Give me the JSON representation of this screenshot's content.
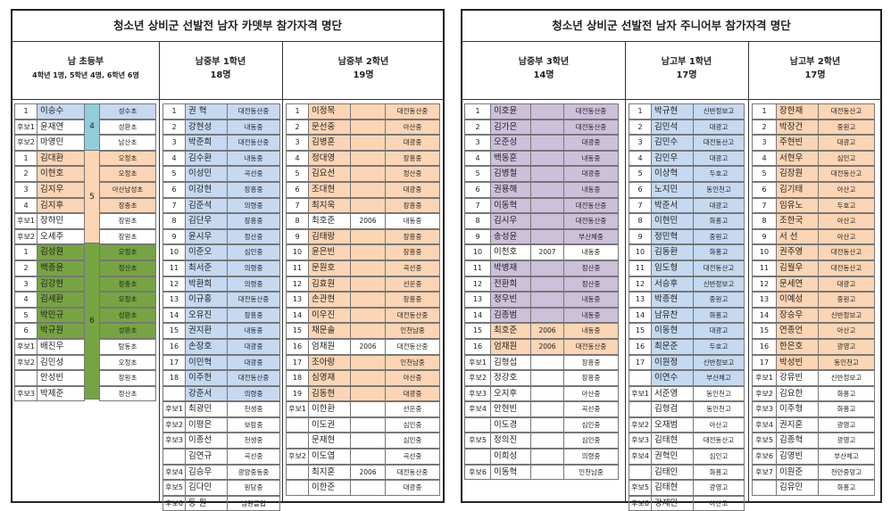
{
  "left": {
    "title": "청소년 상비군 선발전 남자 카뎃부 참가자격 명단",
    "headers": [
      {
        "name": "남 초등부",
        "count": "4학년 1명, 5학년 4명, 6학년 6명"
      },
      {
        "name": "남중부  1학년",
        "count": "18명"
      },
      {
        "name": "남중부  2학년",
        "count": "19명"
      }
    ],
    "elementary": [
      {
        "n": "1",
        "name": "이승수",
        "group": "4",
        "school": "성수초",
        "color": "blue"
      },
      {
        "n": "후보1",
        "name": "윤재연",
        "group": "4",
        "school": "성환초",
        "color": ""
      },
      {
        "n": "후보2",
        "name": "마영민",
        "group": "4",
        "school": "남산초",
        "color": ""
      },
      {
        "n": "1",
        "name": "김대환",
        "group": "5",
        "school": "오정초",
        "color": "orange"
      },
      {
        "n": "2",
        "name": "이현호",
        "group": "5",
        "school": "오정초",
        "color": "orange"
      },
      {
        "n": "3",
        "name": "김지우",
        "group": "5",
        "school": "아산남성초",
        "color": "orange"
      },
      {
        "n": "4",
        "name": "김지후",
        "group": "5",
        "school": "장충초",
        "color": "orange"
      },
      {
        "n": "후보1",
        "name": "장하민",
        "group": "5",
        "school": "장원초",
        "color": ""
      },
      {
        "n": "후보2",
        "name": "오세주",
        "group": "5",
        "school": "장원초",
        "color": ""
      },
      {
        "n": "1",
        "name": "김성원",
        "group": "6",
        "school": "오정초",
        "color": "green"
      },
      {
        "n": "2",
        "name": "백종윤",
        "group": "6",
        "school": "정산초",
        "color": "green"
      },
      {
        "n": "3",
        "name": "김강현",
        "group": "6",
        "school": "장충초",
        "color": "green"
      },
      {
        "n": "4",
        "name": "김세환",
        "group": "6",
        "school": "오정초",
        "color": "green"
      },
      {
        "n": "5",
        "name": "박민규",
        "group": "6",
        "school": "성환초",
        "color": "green"
      },
      {
        "n": "6",
        "name": "박규원",
        "group": "6",
        "school": "성환초",
        "color": "green"
      },
      {
        "n": "후보1",
        "name": "배진우",
        "group": "6",
        "school": "탐동초",
        "color": ""
      },
      {
        "n": "후보2",
        "name": "김민성",
        "group": "6",
        "school": "오정초",
        "color": ""
      },
      {
        "n": "",
        "name": "안성빈",
        "group": "6",
        "school": "장원초",
        "color": ""
      },
      {
        "n": "후보3",
        "name": "박제준",
        "group": "6",
        "school": "정산초",
        "color": ""
      }
    ],
    "m1": [
      {
        "n": "1",
        "name": "권  혁",
        "school": "대전동산중",
        "color": "blue"
      },
      {
        "n": "2",
        "name": "강현성",
        "school": "내동중",
        "color": "blue"
      },
      {
        "n": "3",
        "name": "박준희",
        "school": "대전동산중",
        "color": "blue"
      },
      {
        "n": "4",
        "name": "김수환",
        "school": "내동중",
        "color": "blue"
      },
      {
        "n": "5",
        "name": "이성민",
        "school": "곡선중",
        "color": "blue"
      },
      {
        "n": "6",
        "name": "이강현",
        "school": "장흥중",
        "color": "blue"
      },
      {
        "n": "7",
        "name": "김준석",
        "school": "의령중",
        "color": "blue"
      },
      {
        "n": "8",
        "name": "김단우",
        "school": "장흥중",
        "color": "blue"
      },
      {
        "n": "9",
        "name": "윤시우",
        "school": "정산중",
        "color": "blue"
      },
      {
        "n": "10",
        "name": "이준오",
        "school": "심인중",
        "color": "blue"
      },
      {
        "n": "11",
        "name": "최서준",
        "school": "의령중",
        "color": "blue"
      },
      {
        "n": "12",
        "name": "박환희",
        "school": "의령중",
        "color": "blue"
      },
      {
        "n": "13",
        "name": "이규홍",
        "school": "대전동산중",
        "color": "blue"
      },
      {
        "n": "14",
        "name": "오유진",
        "school": "장흥중",
        "color": "blue"
      },
      {
        "n": "15",
        "name": "권지환",
        "school": "내동중",
        "color": "blue"
      },
      {
        "n": "16",
        "name": "손장호",
        "school": "대광중",
        "color": "blue"
      },
      {
        "n": "17",
        "name": "이민혁",
        "school": "대광중",
        "color": "blue"
      },
      {
        "n": "18",
        "name": "이주헌",
        "school": "대전동산중",
        "color": "blue"
      },
      {
        "n": "",
        "name": "강준서",
        "school": "의령중",
        "color": "blue"
      },
      {
        "n": "후보1",
        "name": "최광민",
        "school": "천생중",
        "color": ""
      },
      {
        "n": "후보2",
        "name": "이평은",
        "school": "보람중",
        "color": ""
      },
      {
        "n": "후보3",
        "name": "이종선",
        "school": "천생중",
        "color": ""
      },
      {
        "n": "",
        "name": "김연규",
        "school": "곡선중",
        "color": ""
      },
      {
        "n": "후보4",
        "name": "김승우",
        "school": "광양중동중",
        "color": ""
      },
      {
        "n": "후보5",
        "name": "김다민",
        "school": "원당중",
        "color": ""
      },
      {
        "n": "후보6",
        "name": "동  원",
        "school": "남원클럽",
        "color": ""
      }
    ],
    "m2": [
      {
        "n": "1",
        "name": "이정목",
        "yr": "",
        "school": "대전동산중",
        "color": "orange"
      },
      {
        "n": "2",
        "name": "문선중",
        "yr": "",
        "school": "아산중",
        "color": "orange"
      },
      {
        "n": "3",
        "name": "김병훈",
        "yr": "",
        "school": "대광중",
        "color": "orange"
      },
      {
        "n": "4",
        "name": "정대영",
        "yr": "",
        "school": "장흥중",
        "color": "orange"
      },
      {
        "n": "5",
        "name": "김요선",
        "yr": "",
        "school": "정산중",
        "color": "orange"
      },
      {
        "n": "6",
        "name": "조대현",
        "yr": "",
        "school": "대광중",
        "color": "orange"
      },
      {
        "n": "7",
        "name": "최지욱",
        "yr": "",
        "school": "장흥중",
        "color": "orange"
      },
      {
        "n": "8",
        "name": "최호준",
        "yr": "2006",
        "school": "내동중",
        "color": ""
      },
      {
        "n": "9",
        "name": "김태랑",
        "yr": "",
        "school": "장흥중",
        "color": "orange"
      },
      {
        "n": "10",
        "name": "윤은빈",
        "yr": "",
        "school": "장흥중",
        "color": "orange"
      },
      {
        "n": "11",
        "name": "문원호",
        "yr": "",
        "school": "곡선중",
        "color": "orange"
      },
      {
        "n": "12",
        "name": "김효원",
        "yr": "",
        "school": "선운중",
        "color": "orange"
      },
      {
        "n": "13",
        "name": "손관현",
        "yr": "",
        "school": "장흥중",
        "color": "orange"
      },
      {
        "n": "14",
        "name": "이우진",
        "yr": "",
        "school": "대전동산중",
        "color": "orange"
      },
      {
        "n": "15",
        "name": "채문솔",
        "yr": "",
        "school": "인천남중",
        "color": "orange"
      },
      {
        "n": "16",
        "name": "엄채원",
        "yr": "2006",
        "school": "대전동산중",
        "color": ""
      },
      {
        "n": "17",
        "name": "조아랑",
        "yr": "",
        "school": "인천남중",
        "color": "orange"
      },
      {
        "n": "18",
        "name": "심영재",
        "yr": "",
        "school": "아산중",
        "color": "orange"
      },
      {
        "n": "19",
        "name": "김동현",
        "yr": "",
        "school": "대광중",
        "color": "orange"
      },
      {
        "n": "후보1",
        "name": "이한환",
        "yr": "",
        "school": "선운중",
        "color": ""
      },
      {
        "n": "",
        "name": "이도권",
        "yr": "",
        "school": "심인중",
        "color": ""
      },
      {
        "n": "",
        "name": "문재현",
        "yr": "",
        "school": "심인중",
        "color": ""
      },
      {
        "n": "후보2",
        "name": "이도엽",
        "yr": "",
        "school": "곡선중",
        "color": ""
      },
      {
        "n": "",
        "name": "최지훈",
        "yr": "2006",
        "school": "대전동산중",
        "color": ""
      },
      {
        "n": "",
        "name": "이한준",
        "yr": "",
        "school": "대광중",
        "color": ""
      }
    ]
  },
  "right": {
    "title": "청소년 상비군 선발전 남자 주니어부 참가자격 명단",
    "headers": [
      {
        "name": "남중부  3학년",
        "count": "14명"
      },
      {
        "name": "남고부 1학년",
        "count": "17명"
      },
      {
        "name": "남고부  2학년",
        "count": "17명"
      }
    ],
    "m3": [
      {
        "n": "1",
        "name": "이호윤",
        "yr": "",
        "school": "대전동산중",
        "color": "purple"
      },
      {
        "n": "2",
        "name": "김가은",
        "yr": "",
        "school": "대전동산중",
        "color": "purple"
      },
      {
        "n": "3",
        "name": "오준성",
        "yr": "",
        "school": "대광중",
        "color": "purple"
      },
      {
        "n": "4",
        "name": "백동훈",
        "yr": "",
        "school": "내동중",
        "color": "purple"
      },
      {
        "n": "5",
        "name": "김병철",
        "yr": "",
        "school": "대광중",
        "color": "purple"
      },
      {
        "n": "6",
        "name": "권용해",
        "yr": "",
        "school": "내동중",
        "color": "purple"
      },
      {
        "n": "7",
        "name": "이동혁",
        "yr": "",
        "school": "대전동산중",
        "color": "purple"
      },
      {
        "n": "8",
        "name": "김시우",
        "yr": "",
        "school": "대전동산중",
        "color": "purple"
      },
      {
        "n": "9",
        "name": "송성윤",
        "yr": "",
        "school": "부산체중",
        "color": "purple"
      },
      {
        "n": "10",
        "name": "이천호",
        "yr": "2007",
        "school": "내동중",
        "color": ""
      },
      {
        "n": "11",
        "name": "박병재",
        "yr": "",
        "school": "정산중",
        "color": "purple"
      },
      {
        "n": "12",
        "name": "전환희",
        "yr": "",
        "school": "정산중",
        "color": "purple"
      },
      {
        "n": "13",
        "name": "정우빈",
        "yr": "",
        "school": "내동중",
        "color": "purple"
      },
      {
        "n": "14",
        "name": "김종범",
        "yr": "",
        "school": "내동중",
        "color": "purple"
      },
      {
        "n": "15",
        "name": "최호준",
        "yr": "2006",
        "school": "내동중",
        "color": "orange"
      },
      {
        "n": "16",
        "name": "엄채원",
        "yr": "2006",
        "school": "대전동산중",
        "color": "orange"
      },
      {
        "n": "후보1",
        "name": "김형섭",
        "yr": "",
        "school": "장흥중",
        "color": ""
      },
      {
        "n": "후보2",
        "name": "정강호",
        "yr": "",
        "school": "장흥중",
        "color": ""
      },
      {
        "n": "후보3",
        "name": "오지후",
        "yr": "",
        "school": "아산중",
        "color": ""
      },
      {
        "n": "후보4",
        "name": "안현빈",
        "yr": "",
        "school": "곡선중",
        "color": ""
      },
      {
        "n": "",
        "name": "이도경",
        "yr": "",
        "school": "심인중",
        "color": ""
      },
      {
        "n": "후보5",
        "name": "정의진",
        "yr": "",
        "school": "심인중",
        "color": ""
      },
      {
        "n": "",
        "name": "이희성",
        "yr": "",
        "school": "의령중",
        "color": ""
      },
      {
        "n": "후보6",
        "name": "이동혁",
        "yr": "",
        "school": "인천남중",
        "color": ""
      }
    ],
    "h1": [
      {
        "n": "1",
        "name": "박규현",
        "school": "신반정보고",
        "color": "blue"
      },
      {
        "n": "2",
        "name": "김민석",
        "school": "대광고",
        "color": "blue"
      },
      {
        "n": "3",
        "name": "김민수",
        "school": "대전동산고",
        "color": "blue"
      },
      {
        "n": "4",
        "name": "김민우",
        "school": "대광고",
        "color": "blue"
      },
      {
        "n": "5",
        "name": "이상혁",
        "school": "두호고",
        "color": "blue"
      },
      {
        "n": "6",
        "name": "노지민",
        "school": "동인천고",
        "color": "blue"
      },
      {
        "n": "7",
        "name": "박준서",
        "school": "대광고",
        "color": "blue"
      },
      {
        "n": "8",
        "name": "이현민",
        "school": "화홍고",
        "color": "blue"
      },
      {
        "n": "9",
        "name": "정민혁",
        "school": "중원고",
        "color": "blue"
      },
      {
        "n": "10",
        "name": "김동환",
        "school": "화홍고",
        "color": "blue"
      },
      {
        "n": "11",
        "name": "임도형",
        "school": "대전동산고",
        "color": "blue"
      },
      {
        "n": "12",
        "name": "서승후",
        "school": "신반정보고",
        "color": "blue"
      },
      {
        "n": "13",
        "name": "박종현",
        "school": "중원고",
        "color": "blue"
      },
      {
        "n": "14",
        "name": "남유찬",
        "school": "화홍고",
        "color": "blue"
      },
      {
        "n": "15",
        "name": "이동현",
        "school": "대광고",
        "color": "blue"
      },
      {
        "n": "16",
        "name": "최문준",
        "school": "두호고",
        "color": "blue"
      },
      {
        "n": "17",
        "name": "이원정",
        "school": "신반정보고",
        "color": "blue"
      },
      {
        "n": "",
        "name": "이연수",
        "school": "부산체고",
        "color": "blue"
      },
      {
        "n": "후보1",
        "name": "서준영",
        "school": "동인천고",
        "color": ""
      },
      {
        "n": "",
        "name": "김형검",
        "school": "동인천고",
        "color": ""
      },
      {
        "n": "후보2",
        "name": "오재범",
        "school": "아산고",
        "color": ""
      },
      {
        "n": "후보3",
        "name": "김태현",
        "school": "대전동산고",
        "color": ""
      },
      {
        "n": "후보4",
        "name": "권혁민",
        "school": "심인고",
        "color": ""
      },
      {
        "n": "",
        "name": "김태인",
        "school": "화홍고",
        "color": ""
      },
      {
        "n": "후보5",
        "name": "김태현",
        "school": "광영고",
        "color": ""
      },
      {
        "n": "후보6",
        "name": "강재민",
        "school": "아산고",
        "color": ""
      }
    ],
    "h2": [
      {
        "n": "1",
        "name": "장한재",
        "school": "대전동산고",
        "color": "orange"
      },
      {
        "n": "2",
        "name": "박장건",
        "school": "중원고",
        "color": "orange"
      },
      {
        "n": "3",
        "name": "주현빈",
        "school": "대광고",
        "color": "orange"
      },
      {
        "n": "4",
        "name": "서현우",
        "school": "심인고",
        "color": "orange"
      },
      {
        "n": "5",
        "name": "김장원",
        "school": "대전동산고",
        "color": "orange"
      },
      {
        "n": "6",
        "name": "김기태",
        "school": "아산고",
        "color": "orange"
      },
      {
        "n": "7",
        "name": "임유노",
        "school": "두호고",
        "color": "orange"
      },
      {
        "n": "8",
        "name": "조한국",
        "school": "아산고",
        "color": "orange"
      },
      {
        "n": "9",
        "name": "서  선",
        "school": "아산고",
        "color": "orange"
      },
      {
        "n": "10",
        "name": "권주영",
        "school": "대전동산고",
        "color": "orange"
      },
      {
        "n": "11",
        "name": "김월우",
        "school": "대전동산고",
        "color": "orange"
      },
      {
        "n": "12",
        "name": "문세연",
        "school": "대광고",
        "color": "orange"
      },
      {
        "n": "13",
        "name": "이예성",
        "school": "중원고",
        "color": "orange"
      },
      {
        "n": "14",
        "name": "장승우",
        "school": "신반정보고",
        "color": "orange"
      },
      {
        "n": "15",
        "name": "연종언",
        "school": "아산고",
        "color": "orange"
      },
      {
        "n": "16",
        "name": "한은호",
        "school": "광영고",
        "color": "orange"
      },
      {
        "n": "17",
        "name": "박성빈",
        "school": "동인천고",
        "color": "orange"
      },
      {
        "n": "후보1",
        "name": "강유빈",
        "school": "신반정보고",
        "color": ""
      },
      {
        "n": "후보2",
        "name": "김요한",
        "school": "화홍고",
        "color": ""
      },
      {
        "n": "후보3",
        "name": "이주형",
        "school": "화홍고",
        "color": ""
      },
      {
        "n": "후보4",
        "name": "권지훈",
        "school": "광영고",
        "color": ""
      },
      {
        "n": "후보5",
        "name": "김종혁",
        "school": "광영고",
        "color": ""
      },
      {
        "n": "후보6",
        "name": "김영빈",
        "school": "부산체고",
        "color": ""
      },
      {
        "n": "후보7",
        "name": "이원준",
        "school": "천안중앙고",
        "color": ""
      },
      {
        "n": "",
        "name": "김유민",
        "school": "화홍고",
        "color": ""
      }
    ]
  }
}
